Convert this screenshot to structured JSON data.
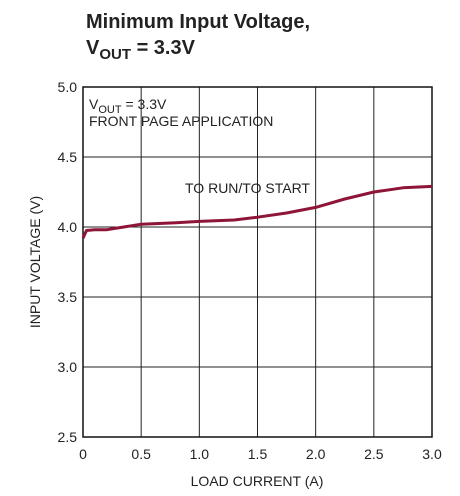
{
  "chart_data": {
    "type": "line",
    "title": "Minimum Input Voltage,",
    "subtitle": {
      "main": "V",
      "sub": "OUT",
      "rest": " = 3.3V"
    },
    "x_label": "LOAD CURRENT (A)",
    "y_label": "INPUT VOLTAGE (V)",
    "annotations": [
      {
        "main": "V",
        "sub": "OUT",
        "rest": " = 3.3V"
      },
      {
        "text": "FRONT PAGE APPLICATION"
      },
      {
        "text": "TO RUN/TO START"
      }
    ],
    "x": [
      0,
      0.03,
      0.1,
      0.2,
      0.35,
      0.5,
      0.8,
      1.0,
      1.3,
      1.5,
      1.75,
      2.0,
      2.25,
      2.5,
      2.75,
      3.0
    ],
    "series": [
      {
        "name": "TO RUN/TO START",
        "color": "#8e1538",
        "values": [
          3.92,
          3.975,
          3.98,
          3.98,
          4.0,
          4.02,
          4.03,
          4.04,
          4.05,
          4.07,
          4.1,
          4.14,
          4.2,
          4.25,
          4.28,
          4.29
        ]
      }
    ],
    "xlim": [
      0,
      3
    ],
    "ylim": [
      2.5,
      5
    ],
    "xticks": [
      0,
      0.5,
      {
        "value": 1,
        "label": "1.0"
      },
      1.5,
      {
        "value": 2,
        "label": "2.0"
      },
      2.5,
      {
        "value": 3,
        "label": "3.0"
      }
    ],
    "yticks": [
      2.5,
      {
        "value": 3,
        "label": "3.0"
      },
      3.5,
      {
        "value": 4,
        "label": "4.0"
      },
      4.5,
      {
        "value": 5,
        "label": "5.0"
      }
    ],
    "grid": true
  }
}
